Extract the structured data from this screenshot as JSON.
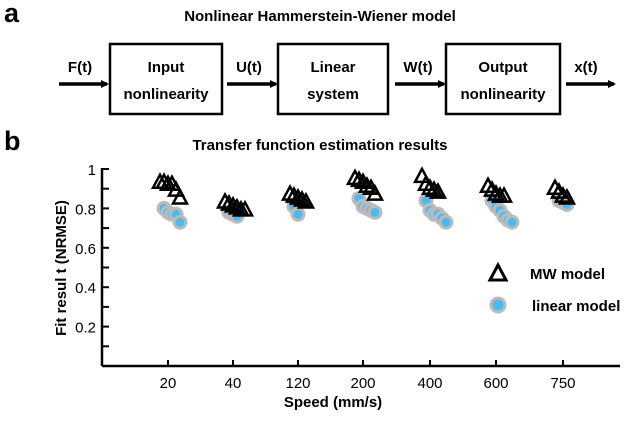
{
  "panel_a": {
    "label": "a",
    "title": "Nonlinear Hammerstein-Wiener model",
    "signals": [
      "F(t)",
      "U(t)",
      "W(t)",
      "x(t)"
    ],
    "blocks": [
      {
        "line1": "Input",
        "line2": "nonlinearity"
      },
      {
        "line1": "Linear",
        "line2": "system"
      },
      {
        "line1": "Output",
        "line2": "nonlinearity"
      }
    ]
  },
  "panel_b": {
    "label": "b"
  },
  "chart_data": {
    "type": "scatter",
    "title": "Transfer function estimation results",
    "xlabel": "Speed (mm/s)",
    "ylabel": "Fit resul t (NRMSE)",
    "categories": [
      "20",
      "40",
      "120",
      "200",
      "400",
      "600",
      "750"
    ],
    "ylim": [
      0,
      1
    ],
    "yticks": [
      "0.2",
      "0.4",
      "0.6",
      "0.8",
      "1"
    ],
    "grid": false,
    "legend_position": "right",
    "series": [
      {
        "name": "MW model",
        "marker": "triangle",
        "color": "#000000",
        "values": [
          [
            0.93,
            0.93,
            0.92,
            0.92,
            0.89,
            0.85
          ],
          [
            0.83,
            0.82,
            0.81,
            0.8,
            0.79,
            0.79
          ],
          [
            0.87,
            0.86,
            0.85,
            0.84,
            0.83
          ],
          [
            0.95,
            0.94,
            0.93,
            0.91,
            0.9,
            0.87
          ],
          [
            0.96,
            0.92,
            0.9,
            0.89,
            0.88
          ],
          [
            0.91,
            0.89,
            0.87,
            0.86,
            0.86
          ],
          [
            0.9,
            0.88,
            0.86,
            0.85
          ]
        ]
      },
      {
        "name": "linear model",
        "marker": "circle",
        "color": "#4fb8ec",
        "values": [
          [
            0.8,
            0.78,
            0.77,
            0.77,
            0.73
          ],
          [
            0.78,
            0.77,
            0.76
          ],
          [
            0.81,
            0.77
          ],
          [
            0.85,
            0.81,
            0.8,
            0.79,
            0.78
          ],
          [
            0.84,
            0.79,
            0.77,
            0.77,
            0.75,
            0.73
          ],
          [
            0.84,
            0.81,
            0.79,
            0.76,
            0.74,
            0.73
          ],
          [
            0.84,
            0.83,
            0.82
          ]
        ]
      }
    ]
  }
}
